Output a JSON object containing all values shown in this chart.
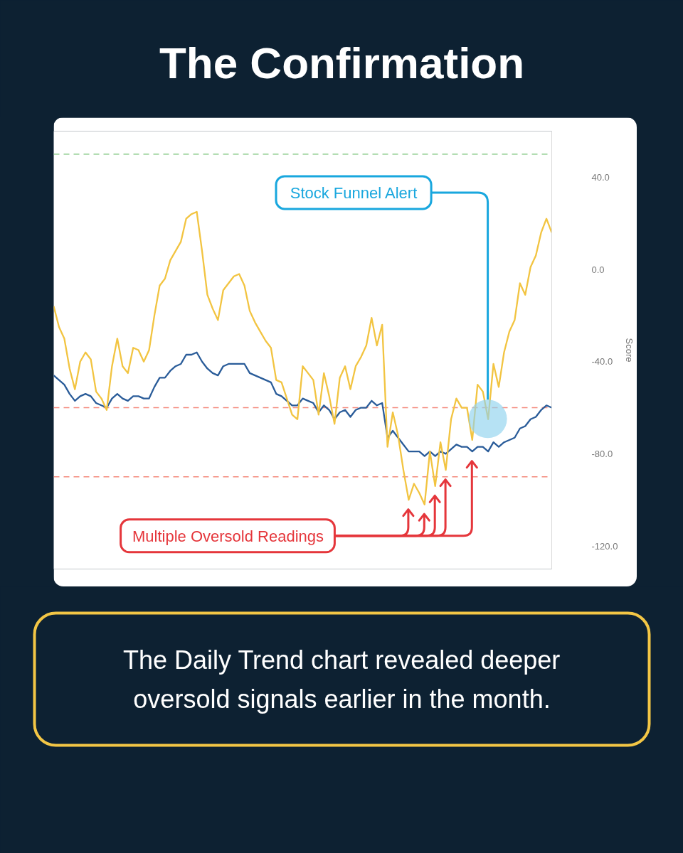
{
  "chart_data": {
    "type": "line",
    "title": "The Confirmation",
    "ylabel": "Score",
    "categories": [
      null,
      null,
      null,
      null,
      null,
      null,
      null,
      null,
      null,
      null,
      null,
      null,
      null,
      null,
      null,
      null,
      null,
      null,
      null,
      null,
      null,
      null,
      null,
      null,
      null,
      null,
      null,
      null,
      null,
      null,
      null,
      null,
      null,
      null,
      null,
      null,
      null,
      null,
      null,
      null,
      null,
      null,
      null,
      null,
      null,
      null,
      null,
      null,
      null,
      null,
      null,
      null,
      null,
      null,
      null,
      null,
      null,
      null,
      null,
      null,
      null,
      null,
      null,
      null,
      null,
      null,
      null,
      null,
      null,
      null,
      null,
      null,
      null,
      null,
      null,
      null,
      null,
      null,
      null,
      null,
      null,
      null,
      null,
      null,
      null,
      null,
      null,
      null,
      null,
      null,
      null,
      null,
      null,
      null,
      null
    ],
    "series": [
      {
        "color": "#2a5c99",
        "values": [
          -46,
          -48,
          -50,
          -54,
          -57,
          -55,
          -54,
          -55,
          -58,
          -59,
          -60,
          -56,
          -54,
          -56,
          -57,
          -55,
          -55,
          -56,
          -56,
          -51,
          -47,
          -47,
          -44,
          -42,
          -41,
          -37,
          -37,
          -36,
          -40,
          -43,
          -45,
          -46,
          -42,
          -41,
          -41,
          -41,
          -41,
          -45,
          -46,
          -47,
          -48,
          -49,
          -54,
          -55,
          -57,
          -59,
          -59,
          -56,
          -57,
          -58,
          -62,
          -59,
          -61,
          -65,
          -62,
          -61,
          -64,
          -61,
          -60,
          -60,
          -57,
          -59,
          -58,
          -73,
          -70,
          -73,
          -76,
          -79,
          -79,
          -79,
          -81,
          -79,
          -81,
          -79,
          -80,
          -78,
          -76,
          -77,
          -77,
          -79,
          -77,
          -77,
          -79,
          -75,
          -77,
          -75,
          -74,
          -73,
          -69,
          -68,
          -65,
          -64,
          -61,
          -59,
          -60
        ]
      },
      {
        "color": "#f2c441",
        "values": [
          -16,
          -25,
          -30,
          -43,
          -52,
          -40,
          -36,
          -39,
          -53,
          -56,
          -61,
          -42,
          -30,
          -42,
          -45,
          -34,
          -35,
          -40,
          -35,
          -20,
          -7,
          -4,
          4,
          8,
          12,
          22,
          24,
          25,
          8,
          -11,
          -17,
          -22,
          -9,
          -6,
          -3,
          -2,
          -7,
          -18,
          -23,
          -27,
          -31,
          -34,
          -48,
          -49,
          -56,
          -63,
          -65,
          -42,
          -45,
          -48,
          -63,
          -45,
          -55,
          -67,
          -47,
          -42,
          -52,
          -42,
          -38,
          -33,
          -21,
          -33,
          -24,
          -77,
          -62,
          -72,
          -87,
          -100,
          -93,
          -97,
          -102,
          -79,
          -94,
          -75,
          -87,
          -65,
          -56,
          -60,
          -60,
          -74,
          -50,
          -53,
          -65,
          -41,
          -51,
          -36,
          -27,
          -22,
          -6,
          -11,
          1,
          6,
          16,
          22,
          16
        ]
      }
    ],
    "ylim": [
      -130,
      60
    ],
    "yticks": [
      {
        "value": 40,
        "label": "40.0"
      },
      {
        "value": 0,
        "label": "0.0"
      },
      {
        "value": -40,
        "label": "-40.0"
      },
      {
        "value": -80,
        "label": "-80.0"
      },
      {
        "value": -120,
        "label": "-120.0"
      }
    ],
    "tick_labels": "y",
    "ref_lines": [
      {
        "axis": "y",
        "value": 50,
        "color": "#9fd49f",
        "line_style": "dashed"
      },
      {
        "axis": "y",
        "value": -60,
        "color": "#f4897b",
        "line_style": "dashed"
      },
      {
        "axis": "y",
        "value": -90,
        "color": "#f4897b",
        "line_style": "dashed"
      }
    ],
    "annotations": [
      "Stock Funnel Alert",
      "Multiple Oversold Readings",
      "The Daily Trend chart revealed deeper oversold signals earlier in the month."
    ]
  }
}
